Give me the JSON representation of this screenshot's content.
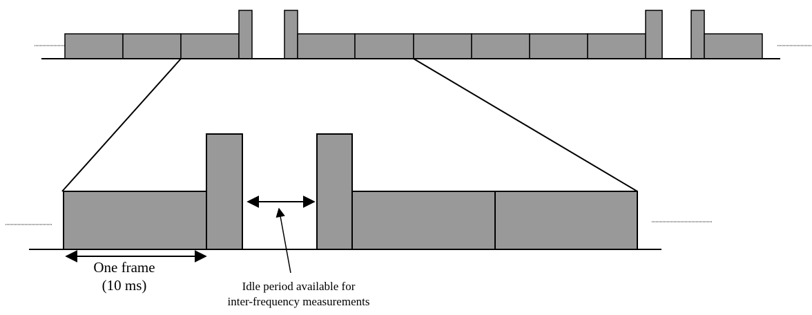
{
  "colors": {
    "frame_fill": "#999999",
    "stroke": "#000000",
    "background": "#ffffff"
  },
  "annotations": {
    "frame": {
      "line1": "One frame",
      "line2": "(10 ms)"
    },
    "idle": {
      "line1": "Idle period available for",
      "line2": "inter-frequency measurements"
    }
  }
}
